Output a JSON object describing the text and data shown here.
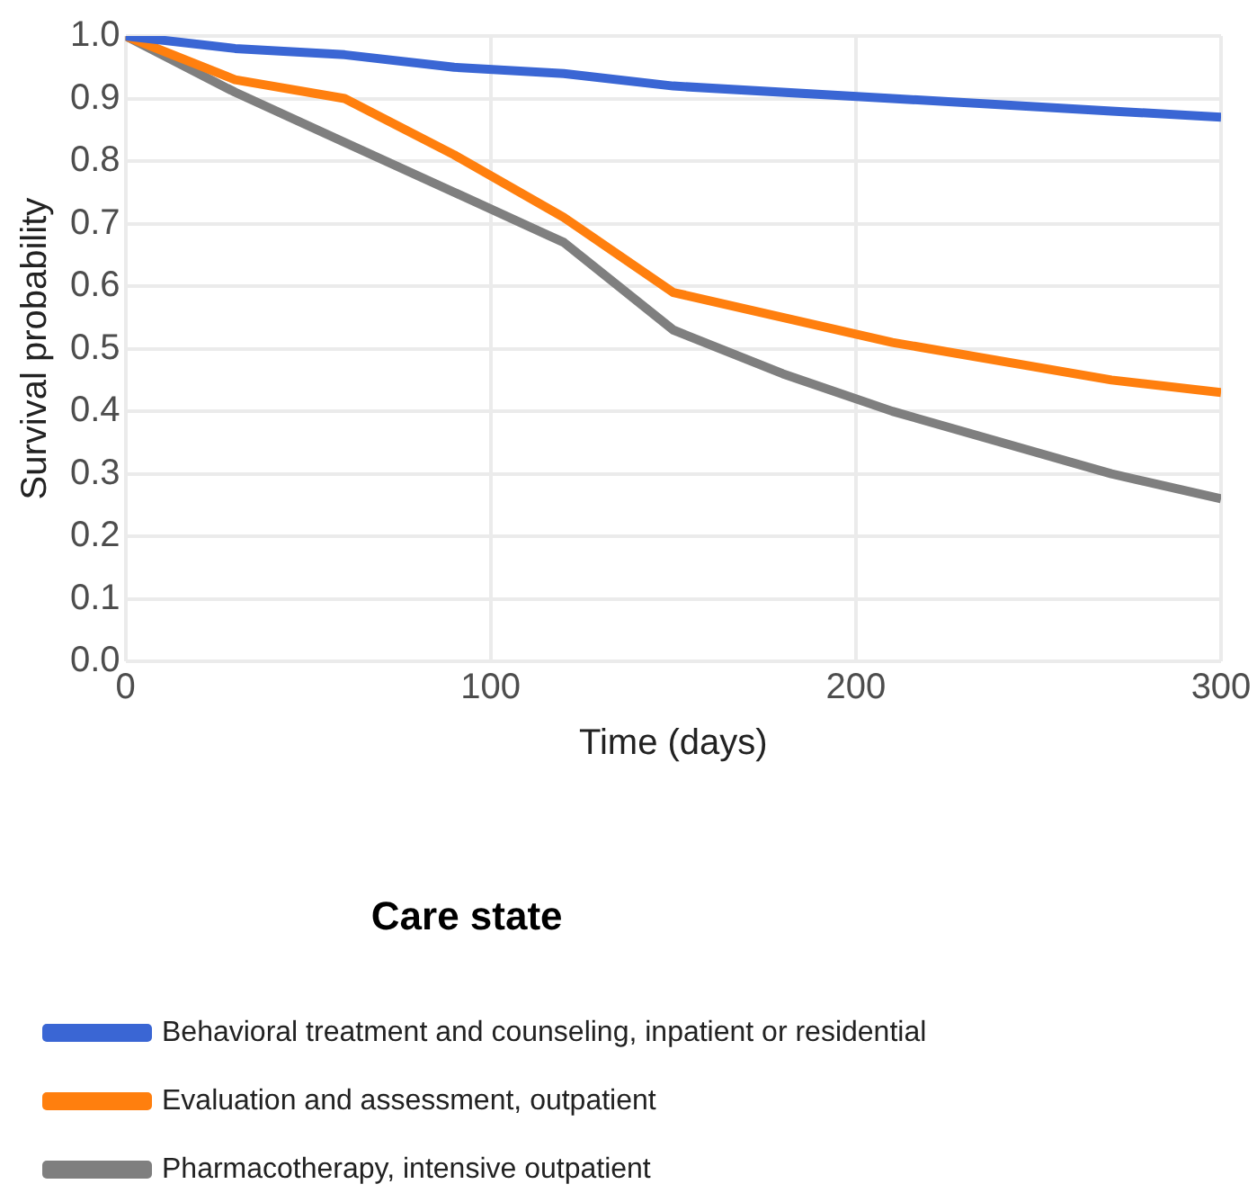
{
  "chart_data": {
    "type": "line",
    "xlabel": "Time (days)",
    "ylabel": "Survival probability",
    "legend_title": "Care state",
    "legend": "bottom",
    "grid": true,
    "marker": "none",
    "line_style": "solid",
    "xlim": [
      0,
      300
    ],
    "xticks": [
      0,
      100,
      200,
      300
    ],
    "ylim": [
      0,
      1
    ],
    "yticks": [
      {
        "value": 0,
        "label": "0.0"
      },
      {
        "value": 0.1,
        "label": "0.1"
      },
      {
        "value": 0.2,
        "label": "0.2"
      },
      {
        "value": 0.3,
        "label": "0.3"
      },
      {
        "value": 0.4,
        "label": "0.4"
      },
      {
        "value": 0.5,
        "label": "0.5"
      },
      {
        "value": 0.6,
        "label": "0.6"
      },
      {
        "value": 0.7,
        "label": "0.7"
      },
      {
        "value": 0.8,
        "label": "0.8"
      },
      {
        "value": 0.9,
        "label": "0.9"
      },
      {
        "value": 1,
        "label": "1.0"
      }
    ],
    "series": [
      {
        "name": "Behavioral treatment and counseling, inpatient or residential",
        "color": "#3a66d4",
        "x": [
          0,
          30,
          60,
          90,
          120,
          150,
          210,
          270,
          300
        ],
        "values": [
          1,
          0.98,
          0.97,
          0.95,
          0.94,
          0.92,
          0.9,
          0.88,
          0.87
        ]
      },
      {
        "name": "Evaluation and assessment, outpatient",
        "color": "#ff7f0e",
        "x": [
          0,
          30,
          60,
          90,
          120,
          150,
          180,
          210,
          270,
          300
        ],
        "values": [
          1,
          0.93,
          0.9,
          0.81,
          0.71,
          0.59,
          0.55,
          0.51,
          0.45,
          0.43
        ]
      },
      {
        "name": "Pharmacotherapy, intensive outpatient",
        "color": "#7f7f7f",
        "x": [
          0,
          30,
          60,
          90,
          120,
          150,
          180,
          210,
          270,
          300
        ],
        "values": [
          1,
          0.91,
          0.83,
          0.75,
          0.67,
          0.53,
          0.46,
          0.4,
          0.3,
          0.26
        ]
      }
    ]
  }
}
